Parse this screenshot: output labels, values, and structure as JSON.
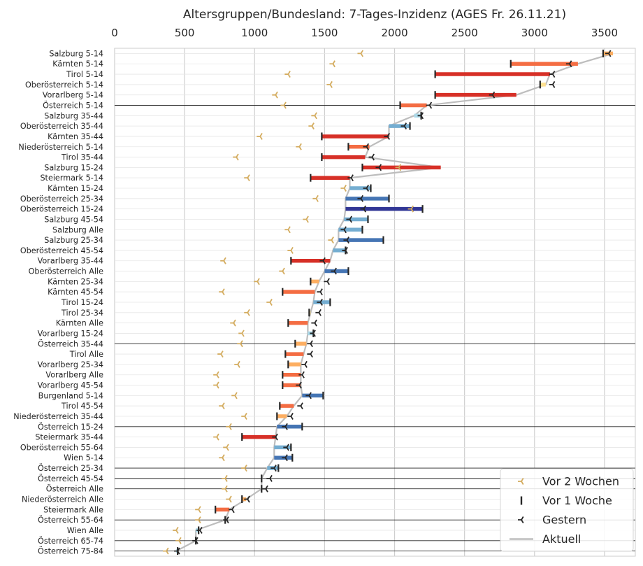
{
  "chart_data": {
    "type": "range-dot",
    "title": "Altersgruppen/Bundesland: 7-Tages-Inzidenz (AGES Fr. 26.11.21)",
    "xlabel": "",
    "ylabel": "",
    "xlim": [
      0,
      3720
    ],
    "xticks": [
      0,
      500,
      1000,
      1500,
      2000,
      2500,
      3000,
      3500
    ],
    "x_axis_position": "top",
    "grid": true,
    "legend": {
      "position": "bottom-right",
      "entries": [
        {
          "key": "two_weeks",
          "label": "Vor 2 Wochen",
          "marker": "tri-right",
          "color": "#d4ac5f"
        },
        {
          "key": "one_week",
          "label": "Vor 1 Woche",
          "marker": "vline",
          "color": "#262626"
        },
        {
          "key": "yesterday",
          "label": "Gestern",
          "marker": "tri-right",
          "color": "#262626"
        },
        {
          "key": "current",
          "label": "Aktuell",
          "marker": "line",
          "color": "#bdbdbd"
        }
      ]
    },
    "colors": {
      "rising_strong": "#a50026",
      "rising": "#d73027",
      "rising_mild": "#f46d43",
      "rising_small": "#fdae61",
      "flat": "#fee090",
      "falling_small": "#abd9e9",
      "falling": "#74add1",
      "falling_mild": "#4575b4",
      "falling_strong": "#313695",
      "current_line": "#bdbdbd",
      "two_weeks_marker": "#d4ac5f",
      "grid": "#e6e6e6",
      "separator": "#262626"
    },
    "columns": [
      "label",
      "two_weeks",
      "one_week",
      "yesterday",
      "current",
      "austria_aggregate_row"
    ],
    "rows": [
      [
        "Salzburg 5-14",
        1760,
        3490,
        3530,
        3560,
        false
      ],
      [
        "Kärnten 5-14",
        1560,
        2830,
        3250,
        3310,
        false
      ],
      [
        "Tirol 5-14",
        1240,
        2290,
        3130,
        3110,
        false
      ],
      [
        "Oberösterreich 5-14",
        1540,
        3040,
        3130,
        3080,
        false
      ],
      [
        "Vorarlberg 5-14",
        1150,
        2290,
        2700,
        2870,
        false
      ],
      [
        "Österreich 5-14",
        1210,
        2040,
        2250,
        2230,
        true
      ],
      [
        "Salzburg 35-44",
        1430,
        2190,
        2190,
        2140,
        false
      ],
      [
        "Oberösterreich 35-44",
        1410,
        2110,
        2070,
        1960,
        false
      ],
      [
        "Kärnten 35-44",
        1040,
        1480,
        1950,
        1960,
        false
      ],
      [
        "Niederösterreich 5-14",
        1320,
        1670,
        1800,
        1820,
        false
      ],
      [
        "Tirol 35-44",
        870,
        1480,
        1840,
        1790,
        false
      ],
      [
        "Salzburg 15-24",
        2030,
        1770,
        1890,
        2330,
        false
      ],
      [
        "Steiermark 5-14",
        950,
        1400,
        1690,
        1680,
        false
      ],
      [
        "Kärnten 15-24",
        1640,
        1830,
        1800,
        1680,
        false
      ],
      [
        "Oberösterreich 25-34",
        1440,
        1960,
        1760,
        1650,
        false
      ],
      [
        "Oberösterreich 15-24",
        2120,
        2200,
        1780,
        1650,
        false
      ],
      [
        "Salzburg 45-54",
        1370,
        1810,
        1680,
        1640,
        false
      ],
      [
        "Salzburg Alle",
        1240,
        1770,
        1640,
        1600,
        false
      ],
      [
        "Salzburg 25-34",
        1550,
        1920,
        1660,
        1600,
        false
      ],
      [
        "Oberösterreich 45-54",
        1260,
        1650,
        1650,
        1560,
        false
      ],
      [
        "Vorarlberg 35-44",
        780,
        1260,
        1490,
        1540,
        false
      ],
      [
        "Oberösterreich Alle",
        1200,
        1670,
        1570,
        1500,
        false
      ],
      [
        "Kärnten 25-34",
        1020,
        1400,
        1520,
        1460,
        false
      ],
      [
        "Kärnten 45-54",
        770,
        1200,
        1470,
        1430,
        false
      ],
      [
        "Tirol 15-24",
        1110,
        1540,
        1470,
        1420,
        false
      ],
      [
        "Tirol 25-34",
        950,
        1390,
        1460,
        1400,
        false
      ],
      [
        "Kärnten Alle",
        850,
        1240,
        1430,
        1380,
        false
      ],
      [
        "Vorarlberg 15-24",
        910,
        1420,
        1420,
        1380,
        false
      ],
      [
        "Österreich 35-44",
        900,
        1290,
        1400,
        1370,
        true
      ],
      [
        "Tirol Alle",
        760,
        1220,
        1400,
        1350,
        false
      ],
      [
        "Vorarlberg 25-34",
        880,
        1240,
        1360,
        1330,
        false
      ],
      [
        "Vorarlberg Alle",
        730,
        1200,
        1340,
        1330,
        false
      ],
      [
        "Vorarlberg 45-54",
        730,
        1200,
        1320,
        1330,
        false
      ],
      [
        "Burgenland 5-14",
        860,
        1490,
        1390,
        1340,
        false
      ],
      [
        "Tirol 45-54",
        770,
        1180,
        1330,
        1280,
        false
      ],
      [
        "Niederösterreich 35-44",
        930,
        1160,
        1260,
        1230,
        false
      ],
      [
        "Österreich 15-24",
        820,
        1340,
        1220,
        1160,
        true
      ],
      [
        "Steiermark 35-44",
        730,
        910,
        1150,
        1150,
        false
      ],
      [
        "Oberösterreich 55-64",
        800,
        1260,
        1230,
        1140,
        false
      ],
      [
        "Wien 5-14",
        770,
        1270,
        1220,
        1140,
        false
      ],
      [
        "Österreich 25-34",
        930,
        1170,
        1140,
        1090,
        true
      ],
      [
        "Österreich 45-54",
        790,
        1050,
        1110,
        1050,
        true
      ],
      [
        "Österreich Alle",
        790,
        1050,
        1080,
        1050,
        true
      ],
      [
        "Niederösterreich Alle",
        820,
        910,
        950,
        940,
        false
      ],
      [
        "Steiermark Alle",
        600,
        720,
        840,
        820,
        false
      ],
      [
        "Österreich 55-64",
        600,
        790,
        800,
        790,
        true
      ],
      [
        "Wien Alle",
        440,
        600,
        610,
        580,
        false
      ],
      [
        "Österreich 65-74",
        460,
        580,
        580,
        580,
        true
      ],
      [
        "Österreich 75-84",
        370,
        450,
        450,
        440,
        true
      ]
    ]
  }
}
